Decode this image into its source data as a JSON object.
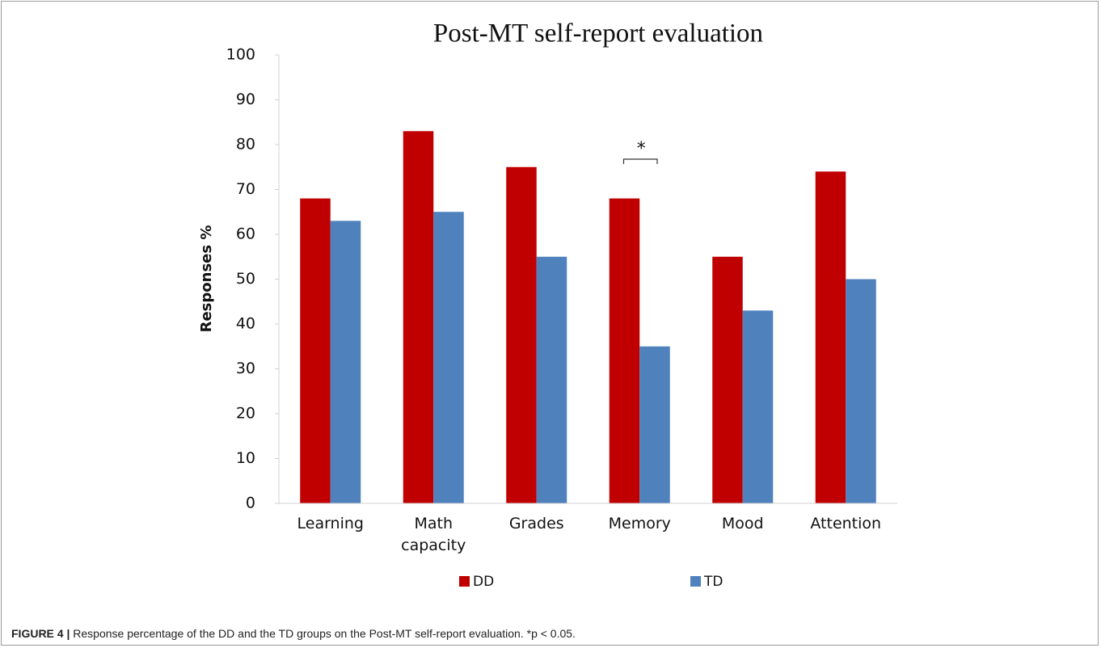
{
  "chart_data": {
    "type": "bar",
    "title": "Post-MT self-report evaluation",
    "y_label": "Responses %",
    "categories": [
      "Learning",
      "Math capacity",
      "Grades",
      "Memory",
      "Mood",
      "Attention"
    ],
    "series": [
      {
        "name": "DD",
        "color": "#c00000",
        "values": [
          68,
          83,
          75,
          68,
          55,
          74
        ]
      },
      {
        "name": "TD",
        "color": "#4f81bd",
        "values": [
          63,
          65,
          55,
          35,
          43,
          50
        ]
      }
    ],
    "ylim": [
      0,
      100
    ],
    "yticks": [
      0,
      10,
      20,
      30,
      40,
      50,
      60,
      70,
      80,
      90,
      100
    ],
    "grid": false,
    "annotations": [
      {
        "text": "*"
      }
    ],
    "caption_label": "FIGURE 4 |",
    "caption": "Response percentage of the DD and the TD groups on the Post-MT self-report evaluation. *p < 0.05."
  }
}
